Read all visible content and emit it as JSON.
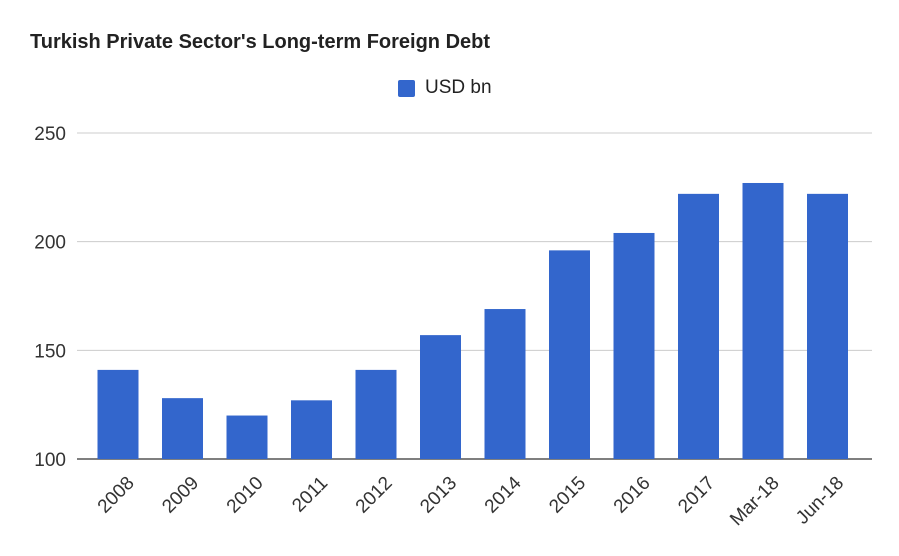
{
  "title": "Turkish Private Sector's Long-term Foreign Debt",
  "colors": {
    "bar": "#3366cc",
    "grid": "#cccccc",
    "baseline": "#333333"
  },
  "chart_data": {
    "type": "bar",
    "title": "Turkish Private Sector's Long-term Foreign Debt",
    "xlabel": "",
    "ylabel": "",
    "categories": [
      "2008",
      "2009",
      "2010",
      "2011",
      "2012",
      "2013",
      "2014",
      "2015",
      "2016",
      "2017",
      "Mar-18",
      "Jun-18"
    ],
    "series": [
      {
        "name": "USD bn",
        "values": [
          141,
          128,
          120,
          127,
          141,
          157,
          169,
          196,
          204,
          222,
          227,
          222
        ]
      }
    ],
    "ylim": [
      100,
      250
    ],
    "yticks": [
      100,
      150,
      200,
      250
    ],
    "grid": true,
    "legend_position": "top-center"
  }
}
